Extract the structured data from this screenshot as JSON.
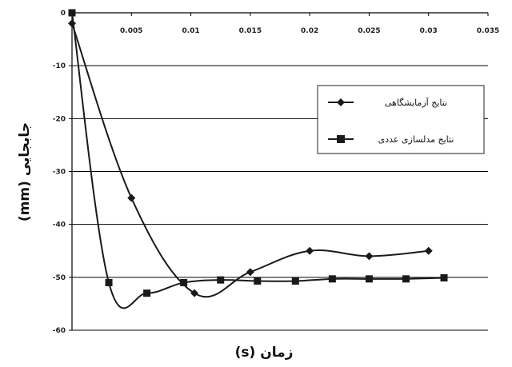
{
  "chart_data": {
    "type": "line",
    "xlabel": "زمان (s)",
    "ylabel": "جابجایی (mm)",
    "xlim": [
      0,
      0.035
    ],
    "ylim": [
      -60,
      0
    ],
    "x_ticks": [
      "0",
      "0.005",
      "0.01",
      "0.015",
      "0.02",
      "0.025",
      "0.03",
      "0.035"
    ],
    "y_ticks": [
      "0",
      "-10",
      "-20",
      "-30",
      "-40",
      "-50",
      "-60"
    ],
    "grid": "horizontal",
    "legend_position": "right",
    "series": [
      {
        "name": "نتایج آزمایشگاهی",
        "marker": "diamond",
        "color": "#1a1a1a",
        "points": [
          {
            "x": 0.0,
            "y": -2
          },
          {
            "x": 0.005,
            "y": -35
          },
          {
            "x": 0.0103,
            "y": -53
          },
          {
            "x": 0.015,
            "y": -49
          },
          {
            "x": 0.02,
            "y": -45
          },
          {
            "x": 0.025,
            "y": -46
          },
          {
            "x": 0.03,
            "y": -45
          }
        ]
      },
      {
        "name": "نتایج مدلسازی عددی",
        "marker": "square",
        "color": "#1a1a1a",
        "points": [
          {
            "x": 0.0,
            "y": 0
          },
          {
            "x": 0.0031,
            "y": -51
          },
          {
            "x": 0.0063,
            "y": -53
          },
          {
            "x": 0.0094,
            "y": -51
          },
          {
            "x": 0.0125,
            "y": -50.5
          },
          {
            "x": 0.0156,
            "y": -50.7
          },
          {
            "x": 0.0188,
            "y": -50.7
          },
          {
            "x": 0.0219,
            "y": -50.3
          },
          {
            "x": 0.025,
            "y": -50.3
          },
          {
            "x": 0.0281,
            "y": -50.3
          },
          {
            "x": 0.0313,
            "y": -50.1
          }
        ]
      }
    ]
  }
}
